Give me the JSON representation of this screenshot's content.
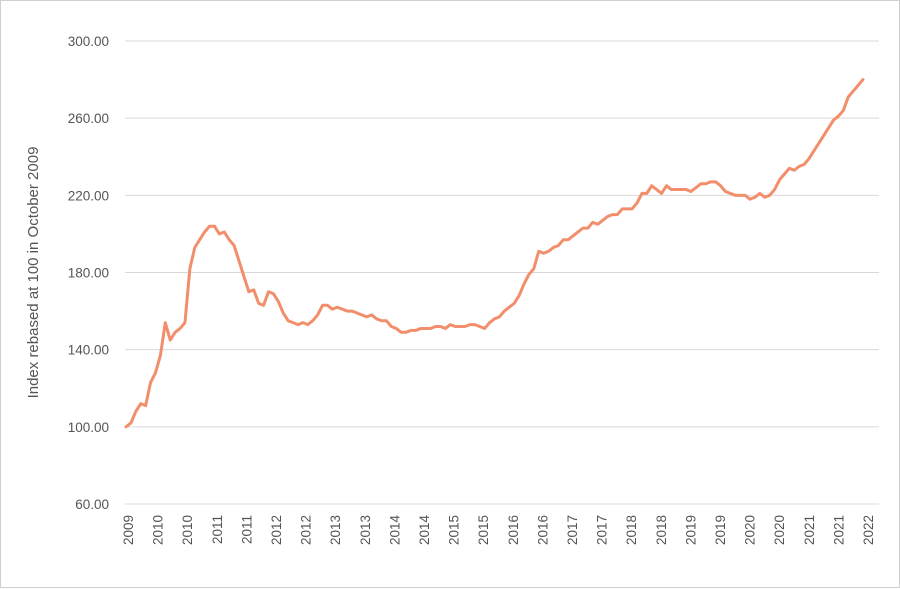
{
  "chart_data": {
    "type": "line",
    "title": "",
    "xlabel": "",
    "ylabel": "Index rebased at 100 in October 2009",
    "ylim": [
      60,
      300
    ],
    "y_ticks": [
      "60.00",
      "100.00",
      "140.00",
      "180.00",
      "220.00",
      "260.00",
      "300.00"
    ],
    "x_ticks": [
      "2009",
      "2010",
      "2010",
      "2011",
      "2011",
      "2012",
      "2012",
      "2013",
      "2013",
      "2014",
      "2014",
      "2015",
      "2015",
      "2016",
      "2016",
      "2017",
      "2017",
      "2018",
      "2018",
      "2019",
      "2019",
      "2020",
      "2020",
      "2021",
      "2021",
      "2022"
    ],
    "grid": "horizontal",
    "legend": "none",
    "series": [
      {
        "color": "#f28e6b",
        "values": [
          100,
          102,
          108,
          112,
          111,
          123,
          128,
          137,
          154,
          145,
          149,
          151,
          154,
          182,
          193,
          197,
          201,
          204,
          204,
          200,
          201,
          197,
          194,
          186,
          178,
          170,
          171,
          164,
          163,
          170,
          169,
          165,
          159,
          155,
          154,
          153,
          154,
          153,
          155,
          158,
          163,
          163,
          161,
          162,
          161,
          160,
          160,
          159,
          158,
          157,
          158,
          156,
          155,
          155,
          152,
          151,
          149,
          149,
          150,
          150,
          151,
          151,
          151,
          152,
          152,
          151,
          153,
          152,
          152,
          152,
          153,
          153,
          152,
          151,
          154,
          156,
          157,
          160,
          162,
          164,
          168,
          174,
          179,
          182,
          191,
          190,
          191,
          193,
          194,
          197,
          197,
          199,
          201,
          203,
          203,
          206,
          205,
          207,
          209,
          210,
          210,
          213,
          213,
          213,
          216,
          221,
          221,
          225,
          223,
          221,
          225,
          223,
          223,
          223,
          223,
          222,
          224,
          226,
          226,
          227,
          227,
          225,
          222,
          221,
          220,
          220,
          220,
          218,
          219,
          221,
          219,
          220,
          223,
          228,
          231,
          234,
          233,
          235,
          236,
          239,
          243,
          247,
          251,
          255,
          259,
          261,
          264,
          271,
          274,
          277,
          280
        ]
      }
    ]
  }
}
